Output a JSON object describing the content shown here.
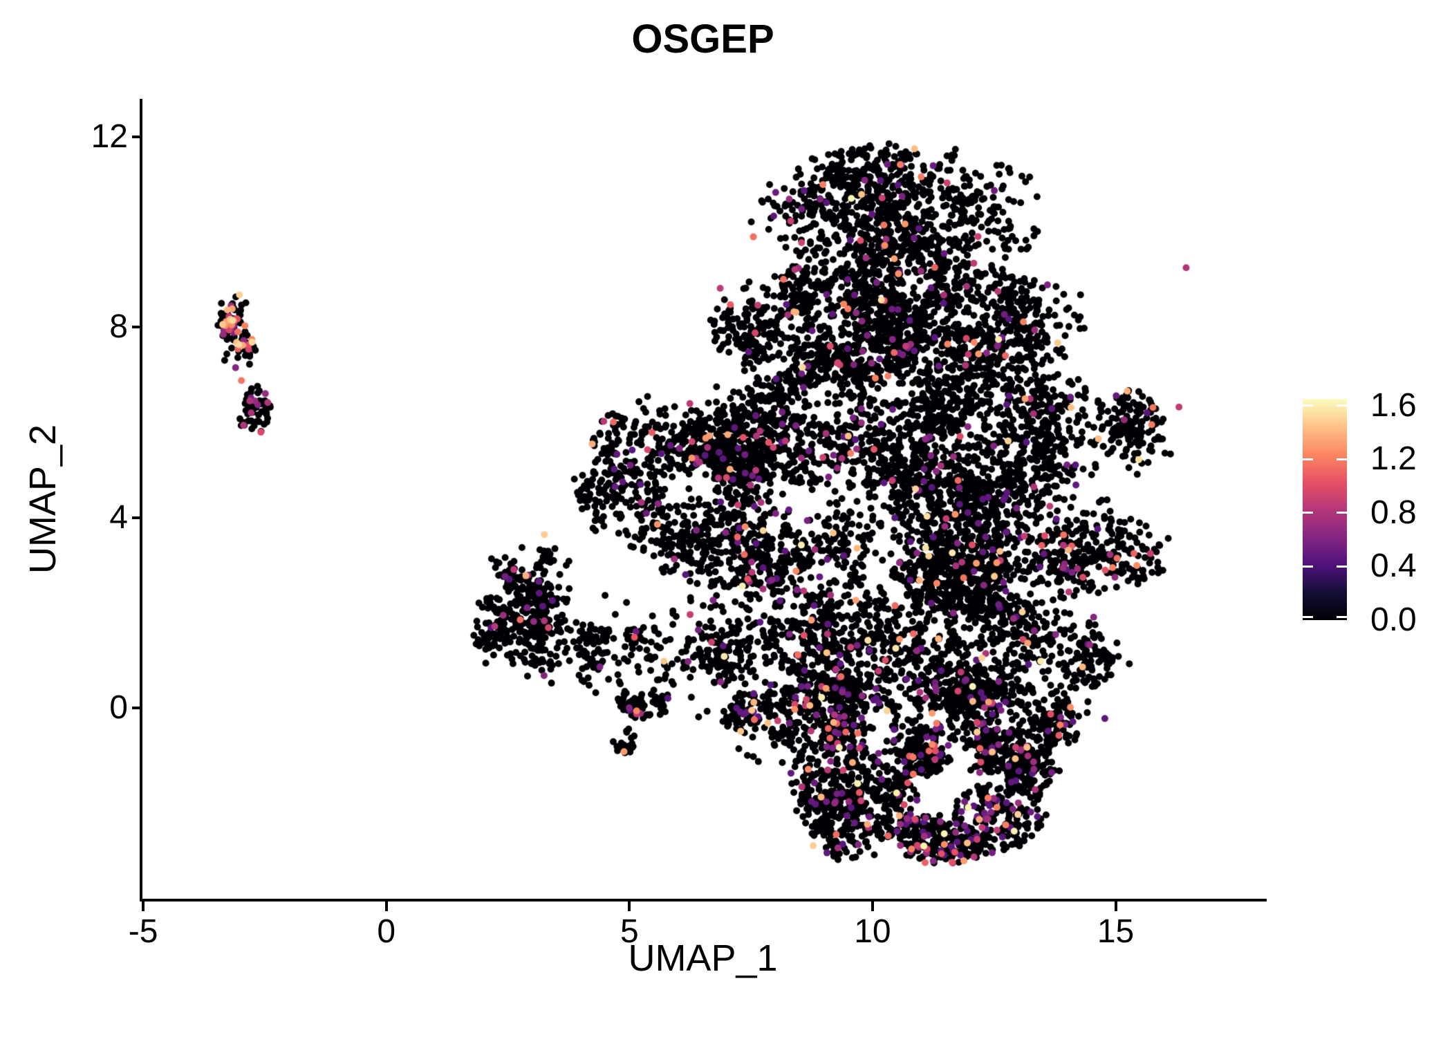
{
  "header": {
    "title": "OSGEP"
  },
  "axis_x": {
    "label": "UMAP_1",
    "tick_labels": [
      "-5",
      "0",
      "5",
      "10",
      "15"
    ]
  },
  "axis_y": {
    "label": "UMAP_2",
    "tick_labels": [
      "12",
      "8",
      "4",
      "0"
    ]
  },
  "colorbar": {
    "tick_labels": [
      "1.6",
      "1.2",
      "0.8",
      "0.4",
      "0.0"
    ],
    "tick_values": [
      1.6,
      1.2,
      0.8,
      0.4,
      0.0
    ],
    "vmin": 0.0,
    "vmax": 1.65,
    "colormap": "magma",
    "stops": [
      [
        0,
        "#000004"
      ],
      [
        0.125,
        "#140e36"
      ],
      [
        0.25,
        "#50127b"
      ],
      [
        0.375,
        "#832681"
      ],
      [
        0.5,
        "#b63779"
      ],
      [
        0.625,
        "#e65164"
      ],
      [
        0.75,
        "#fb8761"
      ],
      [
        0.875,
        "#fec287"
      ],
      [
        1,
        "#fcfdbf"
      ]
    ]
  },
  "colors": {
    "background": "#ffffff",
    "axis": "#000000",
    "text": "#000000",
    "zero_expression_point": "#000004",
    "colorbar_tick": "#ffffff"
  },
  "chart_data": {
    "type": "scatter",
    "title": "OSGEP",
    "xlabel": "UMAP_1",
    "ylabel": "UMAP_2",
    "xlim": [
      -5.03,
      18.05
    ],
    "ylim": [
      -4.04,
      12.8
    ],
    "xticks": [
      -5,
      0,
      5,
      10,
      15
    ],
    "yticks": [
      12,
      8,
      4,
      0
    ],
    "grid": false,
    "legend_position": "right",
    "point_radius_px": 5,
    "seed": 20140,
    "value_range": [
      0.0,
      1.65
    ],
    "default_value_sampling": {
      "vlo": 0.45,
      "vhi": 1.63,
      "pow": 2.4
    },
    "clusters": [
      {
        "name": "dome-top",
        "cx": 10.6,
        "cy": 10.4,
        "rx": 2.9,
        "ry": 1.35,
        "n": 900,
        "f": 0.05,
        "s": 0.34,
        "cl": 26
      },
      {
        "name": "dome-upper",
        "cx": 10.4,
        "cy": 8.1,
        "rx": 4.1,
        "ry": 1.2,
        "n": 1400,
        "f": 0.06,
        "s": 0.34,
        "cl": 26
      },
      {
        "name": "mid-band",
        "cx": 10.9,
        "cy": 5.8,
        "rx": 5.3,
        "ry": 1.3,
        "n": 1700,
        "f": 0.06,
        "s": 0.34,
        "cl": 26
      },
      {
        "name": "lower-band",
        "cx": 10.9,
        "cy": 3.4,
        "rx": 5.0,
        "ry": 1.3,
        "n": 1600,
        "f": 0.06,
        "s": 0.34,
        "cl": 26
      },
      {
        "name": "bottom-band",
        "cx": 10.6,
        "cy": 1.2,
        "rx": 4.4,
        "ry": 1.2,
        "n": 1300,
        "f": 0.07,
        "s": 0.32,
        "cl": 24
      },
      {
        "name": "bottom-rim",
        "cx": 10.8,
        "cy": -0.2,
        "rx": 3.9,
        "ry": 0.75,
        "n": 750,
        "f": 0.12,
        "s": 0.26,
        "cl": 20
      },
      {
        "name": "left-wedge",
        "cx": 5.9,
        "cy": 5.0,
        "rx": 1.9,
        "ry": 1.7,
        "n": 620,
        "f": 0.04,
        "s": 0.28,
        "cl": 20
      },
      {
        "name": "lobe-left",
        "cx": 9.6,
        "cy": -1.8,
        "rx": 1.25,
        "ry": 1.3,
        "n": 500,
        "f": 0.1,
        "s": 0.22,
        "cl": 18
      },
      {
        "name": "lobe-bottom-arc1",
        "cx": 11.2,
        "cy": -2.8,
        "rx": 1.2,
        "ry": 0.5,
        "n": 200,
        "f": 0.18,
        "s": 0.18,
        "cl": 14
      },
      {
        "name": "lobe-bottom-arc2",
        "cx": 12.6,
        "cy": -2.3,
        "rx": 0.9,
        "ry": 0.7,
        "n": 200,
        "f": 0.18,
        "s": 0.18,
        "cl": 14
      },
      {
        "name": "lobe-right-tip",
        "cx": 13.3,
        "cy": -1.4,
        "rx": 0.5,
        "ry": 0.6,
        "n": 100,
        "f": 0.15,
        "s": 0.16,
        "cl": 12
      },
      {
        "name": "lobe-top-band",
        "cx": 11.5,
        "cy": -1.05,
        "rx": 2.2,
        "ry": 0.35,
        "n": 260,
        "f": 0.13,
        "s": 0.16,
        "cl": 16
      },
      {
        "name": "midleft-main",
        "cx": 2.85,
        "cy": 2.1,
        "rx": 1.05,
        "ry": 1.5,
        "n": 380,
        "f": 0.04,
        "s": 0.2,
        "cl": 16
      },
      {
        "name": "midleft-tail",
        "cx": 4.4,
        "cy": 0.9,
        "rx": 1.3,
        "ry": 0.8,
        "n": 130,
        "f": 0.05,
        "s": 0.25,
        "cl": 10
      },
      {
        "name": "midleft-clump1",
        "cx": 5.35,
        "cy": 0.15,
        "rx": 0.55,
        "ry": 0.35,
        "n": 55,
        "f": 0.14,
        "s": 0.12,
        "cl": 8
      },
      {
        "name": "midleft-clump2",
        "cx": 4.85,
        "cy": -0.68,
        "rx": 0.28,
        "ry": 0.28,
        "n": 22,
        "f": 0.1,
        "s": 0.1,
        "cl": 5
      },
      {
        "name": "farleft-upper",
        "cx": -3.05,
        "cy": 7.9,
        "rx": 0.38,
        "ry": 0.95,
        "n": 115,
        "f": 0.22,
        "s": 0.14,
        "cl": 8,
        "vlo": 0.55,
        "vhi": 1.55,
        "p": 1.0
      },
      {
        "name": "farleft-lower",
        "cx": -2.72,
        "cy": 6.3,
        "rx": 0.33,
        "ry": 0.5,
        "n": 58,
        "f": 0.2,
        "s": 0.12,
        "cl": 6,
        "vlo": 0.55,
        "vhi": 1.0,
        "p": 1.0
      },
      {
        "name": "halo-sparse",
        "cx": 8.6,
        "cy": 3.2,
        "rx": 5.2,
        "ry": 4.6,
        "n": 150,
        "f": 0.05,
        "s": 0.15,
        "cl": 1
      },
      {
        "name": "bridge-sparse",
        "cx": 6.3,
        "cy": 1.5,
        "rx": 1.3,
        "ry": 1.1,
        "n": 60,
        "f": 0.05,
        "s": 0.15,
        "cl": 1
      }
    ],
    "extra_points": [
      {
        "x": -3.02,
        "y": 8.68,
        "v": 1.5
      },
      {
        "x": -3.18,
        "y": 8.05,
        "v": 1.25
      },
      {
        "x": -2.95,
        "y": 7.62,
        "v": 1.35
      },
      {
        "x": -3.1,
        "y": 7.15,
        "v": 0.62
      },
      {
        "x": -2.98,
        "y": 6.88,
        "v": 1.18
      },
      {
        "x": -2.7,
        "y": 6.45,
        "v": 0.7
      },
      {
        "x": -2.78,
        "y": 6.2,
        "v": 0.78
      },
      {
        "x": 16.45,
        "y": 9.25,
        "v": 0.8
      },
      {
        "x": 12.79,
        "y": 5.61,
        "v": 1.5
      },
      {
        "x": 12.99,
        "y": -2.24,
        "v": 1.5
      },
      {
        "x": 9.55,
        "y": 5.35,
        "v": 1.2
      },
      {
        "x": 7.55,
        "y": 9.9,
        "v": 1.15
      },
      {
        "x": 10.57,
        "y": 11.42,
        "v": 1.2
      },
      {
        "x": 11.0,
        "y": 11.16,
        "v": 1.2
      }
    ]
  }
}
